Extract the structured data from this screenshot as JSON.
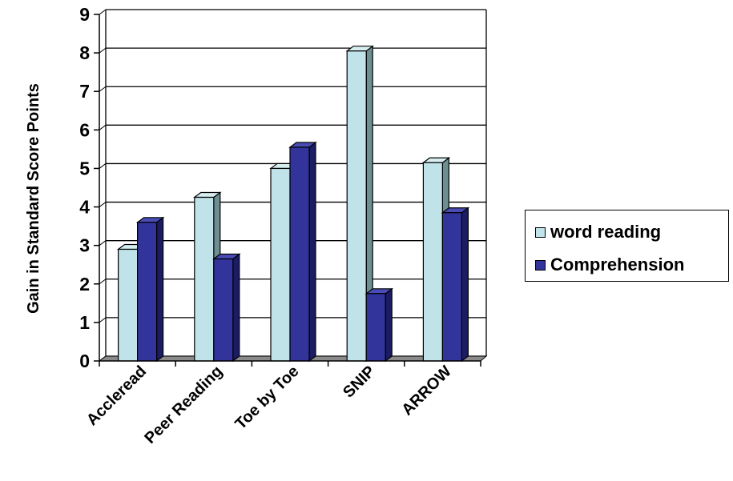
{
  "chart_data": {
    "type": "bar",
    "three_d": true,
    "categories": [
      "Accleread",
      "Peer Reading",
      "Toe by Toe",
      "SNIP",
      "ARROW"
    ],
    "series": [
      {
        "name": "word reading",
        "values": [
          2.9,
          4.25,
          5.0,
          8.05,
          5.15
        ],
        "color": "#bfe3e8"
      },
      {
        "name": "Comprehension",
        "values": [
          3.6,
          2.65,
          5.55,
          1.75,
          3.85
        ],
        "color": "#33349b"
      }
    ],
    "title": "",
    "xlabel": "",
    "ylabel": "Gain in Standard Score  Points",
    "ylim": [
      0,
      9
    ],
    "yticks": [
      0,
      1,
      2,
      3,
      4,
      5,
      6,
      7,
      8,
      9
    ],
    "grid": true,
    "legend_position": "right"
  }
}
